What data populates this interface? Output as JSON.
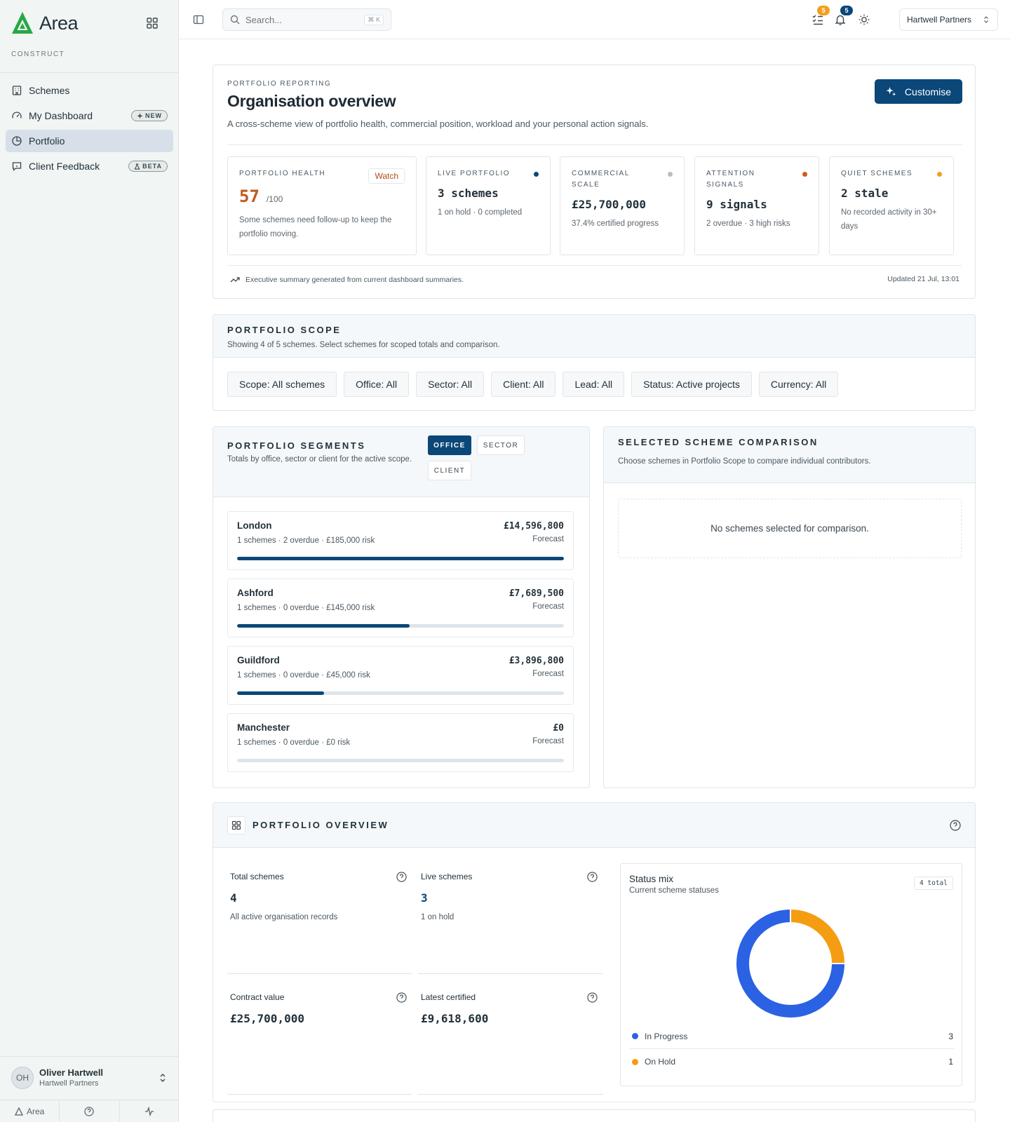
{
  "app": {
    "name": "Area",
    "org_label": "CONSTRUCT",
    "brand_color": "#27a844",
    "accent_color": "#0b4778"
  },
  "sidebar": {
    "items": [
      {
        "label": "Schemes",
        "icon": "building-icon"
      },
      {
        "label": "My Dashboard",
        "icon": "gauge-icon",
        "badge": "NEW"
      },
      {
        "label": "Portfolio",
        "icon": "pie-chart-icon",
        "active": true
      },
      {
        "label": "Client Feedback",
        "icon": "message-square-icon",
        "badge": "BETA"
      }
    ],
    "user": {
      "initials": "OH",
      "name": "Oliver Hartwell",
      "org": "Hartwell Partners"
    },
    "footer": {
      "area_label": "Area"
    }
  },
  "topbar": {
    "search_placeholder": "Search...",
    "search_shortcut": "⌘ K",
    "tasks_count": "5",
    "notifications_count": "5",
    "org_name": "Hartwell Partners"
  },
  "overview": {
    "eyebrow": "PORTFOLIO REPORTING",
    "title": "Organisation overview",
    "description": "A cross-scheme view of portfolio health, commercial position, workload and your personal action signals.",
    "customise_label": "Customise",
    "health": {
      "label": "PORTFOLIO HEALTH",
      "status": "Watch",
      "score": "57",
      "score_max": "/100",
      "note": "Some schemes need follow-up to keep the portfolio moving."
    },
    "kpis": [
      {
        "label": "LIVE PORTFOLIO",
        "value": "3 schemes",
        "sub": "1 on hold · 0 completed",
        "dot_color": "#0b4778"
      },
      {
        "label": "COMMERCIAL SCALE",
        "value": "£25,700,000",
        "sub": "37.4% certified progress",
        "dot_color": "#b7bec4"
      },
      {
        "label": "ATTENTION SIGNALS",
        "value": "9 signals",
        "sub": "2 overdue · 3 high risks",
        "dot_color": "#d4581c"
      },
      {
        "label": "QUIET SCHEMES",
        "value": "2 stale",
        "sub": "No recorded activity in 30+ days",
        "dot_color": "#f0a020"
      }
    ],
    "summary_note": "Executive summary generated from current dashboard summaries.",
    "updated": "Updated 21 Jul, 13:01"
  },
  "scope": {
    "title": "PORTFOLIO SCOPE",
    "description": "Showing 4 of 5 schemes. Select schemes for scoped totals and comparison.",
    "filters": [
      "Scope: All schemes",
      "Office: All",
      "Sector: All",
      "Client: All",
      "Lead: All",
      "Status: Active projects",
      "Currency: All"
    ]
  },
  "segments": {
    "title": "PORTFOLIO SEGMENTS",
    "description": "Totals by office, sector or client for the active scope.",
    "tabs": [
      "OFFICE",
      "SECTOR",
      "CLIENT"
    ],
    "active_tab": "OFFICE",
    "rows": [
      {
        "name": "London",
        "meta": "1 schemes · 2 overdue · £185,000 risk",
        "amount": "£14,596,800",
        "amount_label": "Forecast",
        "share": 1.0
      },
      {
        "name": "Ashford",
        "meta": "1 schemes · 0 overdue · £145,000 risk",
        "amount": "£7,689,500",
        "amount_label": "Forecast",
        "share": 0.527
      },
      {
        "name": "Guildford",
        "meta": "1 schemes · 0 overdue · £45,000 risk",
        "amount": "£3,896,800",
        "amount_label": "Forecast",
        "share": 0.267
      },
      {
        "name": "Manchester",
        "meta": "1 schemes · 0 overdue · £0 risk",
        "amount": "£0",
        "amount_label": "Forecast",
        "share": 0
      }
    ]
  },
  "comparison": {
    "title": "SELECTED SCHEME COMPARISON",
    "description": "Choose schemes in Portfolio Scope to compare individual contributors.",
    "empty": "No schemes selected for comparison."
  },
  "portfolio_overview": {
    "title": "PORTFOLIO OVERVIEW",
    "metrics": [
      {
        "label": "Total schemes",
        "value": "4",
        "sub": "All active organisation records"
      },
      {
        "label": "Live schemes",
        "value": "3",
        "sub": "1 on hold"
      },
      {
        "label": "Contract value",
        "value": "£25,700,000",
        "sub": ""
      },
      {
        "label": "Latest certified",
        "value": "£9,618,600",
        "sub": ""
      }
    ],
    "status_mix": {
      "title": "Status mix",
      "subtitle": "Current scheme statuses",
      "total_label": "4 total",
      "items": [
        {
          "label": "In Progress",
          "value": 3,
          "color": "#2b62e3"
        },
        {
          "label": "On Hold",
          "value": 1,
          "color": "#f49d12"
        }
      ]
    }
  }
}
